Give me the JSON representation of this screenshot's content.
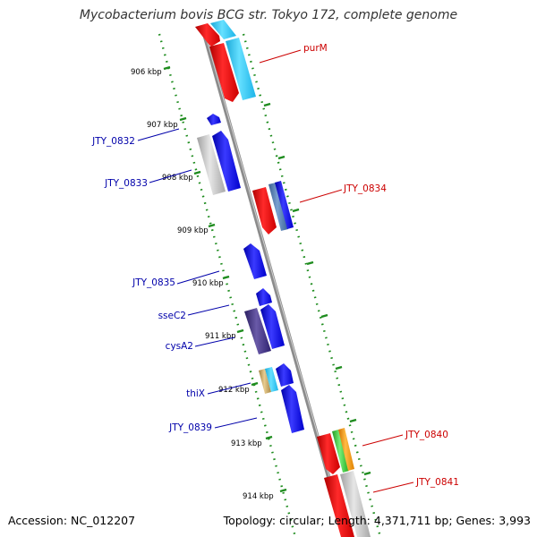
{
  "title": "Mycobacterium bovis BCG str. Tokyo 172, complete genome",
  "footer": {
    "accession": "Accession: NC_012207",
    "summary": "Topology: circular; Length: 4,371,711 bp; Genes: 3,993"
  },
  "colors": {
    "backbone": "#8c8c8c",
    "tick": "#1e8c1e",
    "label_blue": "#0000aa",
    "label_red": "#cc0000",
    "gene_blue": "#0000ee",
    "gene_red": "#ee0000",
    "gene_cyan": "#22c8f0",
    "gene_gray": "#b8b8b8",
    "gene_purple": "#3c2c80",
    "gene_steel": "#4a78b0",
    "gene_tan": "#c8a868",
    "gene_green": "#44cc44",
    "gene_orange": "#ff9900"
  },
  "scale": {
    "ticks": [
      "906 kbp",
      "907 kbp",
      "908 kbp",
      "909 kbp",
      "910 kbp",
      "911 kbp",
      "912 kbp",
      "913 kbp",
      "914 kbp"
    ]
  },
  "labels": [
    {
      "name": "purM",
      "side": "right",
      "color": "red"
    },
    {
      "name": "JTY_0832",
      "side": "left",
      "color": "blue"
    },
    {
      "name": "JTY_0833",
      "side": "left",
      "color": "blue"
    },
    {
      "name": "JTY_0834",
      "side": "right",
      "color": "red"
    },
    {
      "name": "JTY_0835",
      "side": "left",
      "color": "blue"
    },
    {
      "name": "sseC2",
      "side": "left",
      "color": "blue"
    },
    {
      "name": "cysA2",
      "side": "left",
      "color": "blue"
    },
    {
      "name": "thiX",
      "side": "left",
      "color": "blue"
    },
    {
      "name": "JTY_0839",
      "side": "left",
      "color": "blue"
    },
    {
      "name": "JTY_0840",
      "side": "right",
      "color": "red"
    },
    {
      "name": "JTY_0841",
      "side": "right",
      "color": "red"
    }
  ]
}
